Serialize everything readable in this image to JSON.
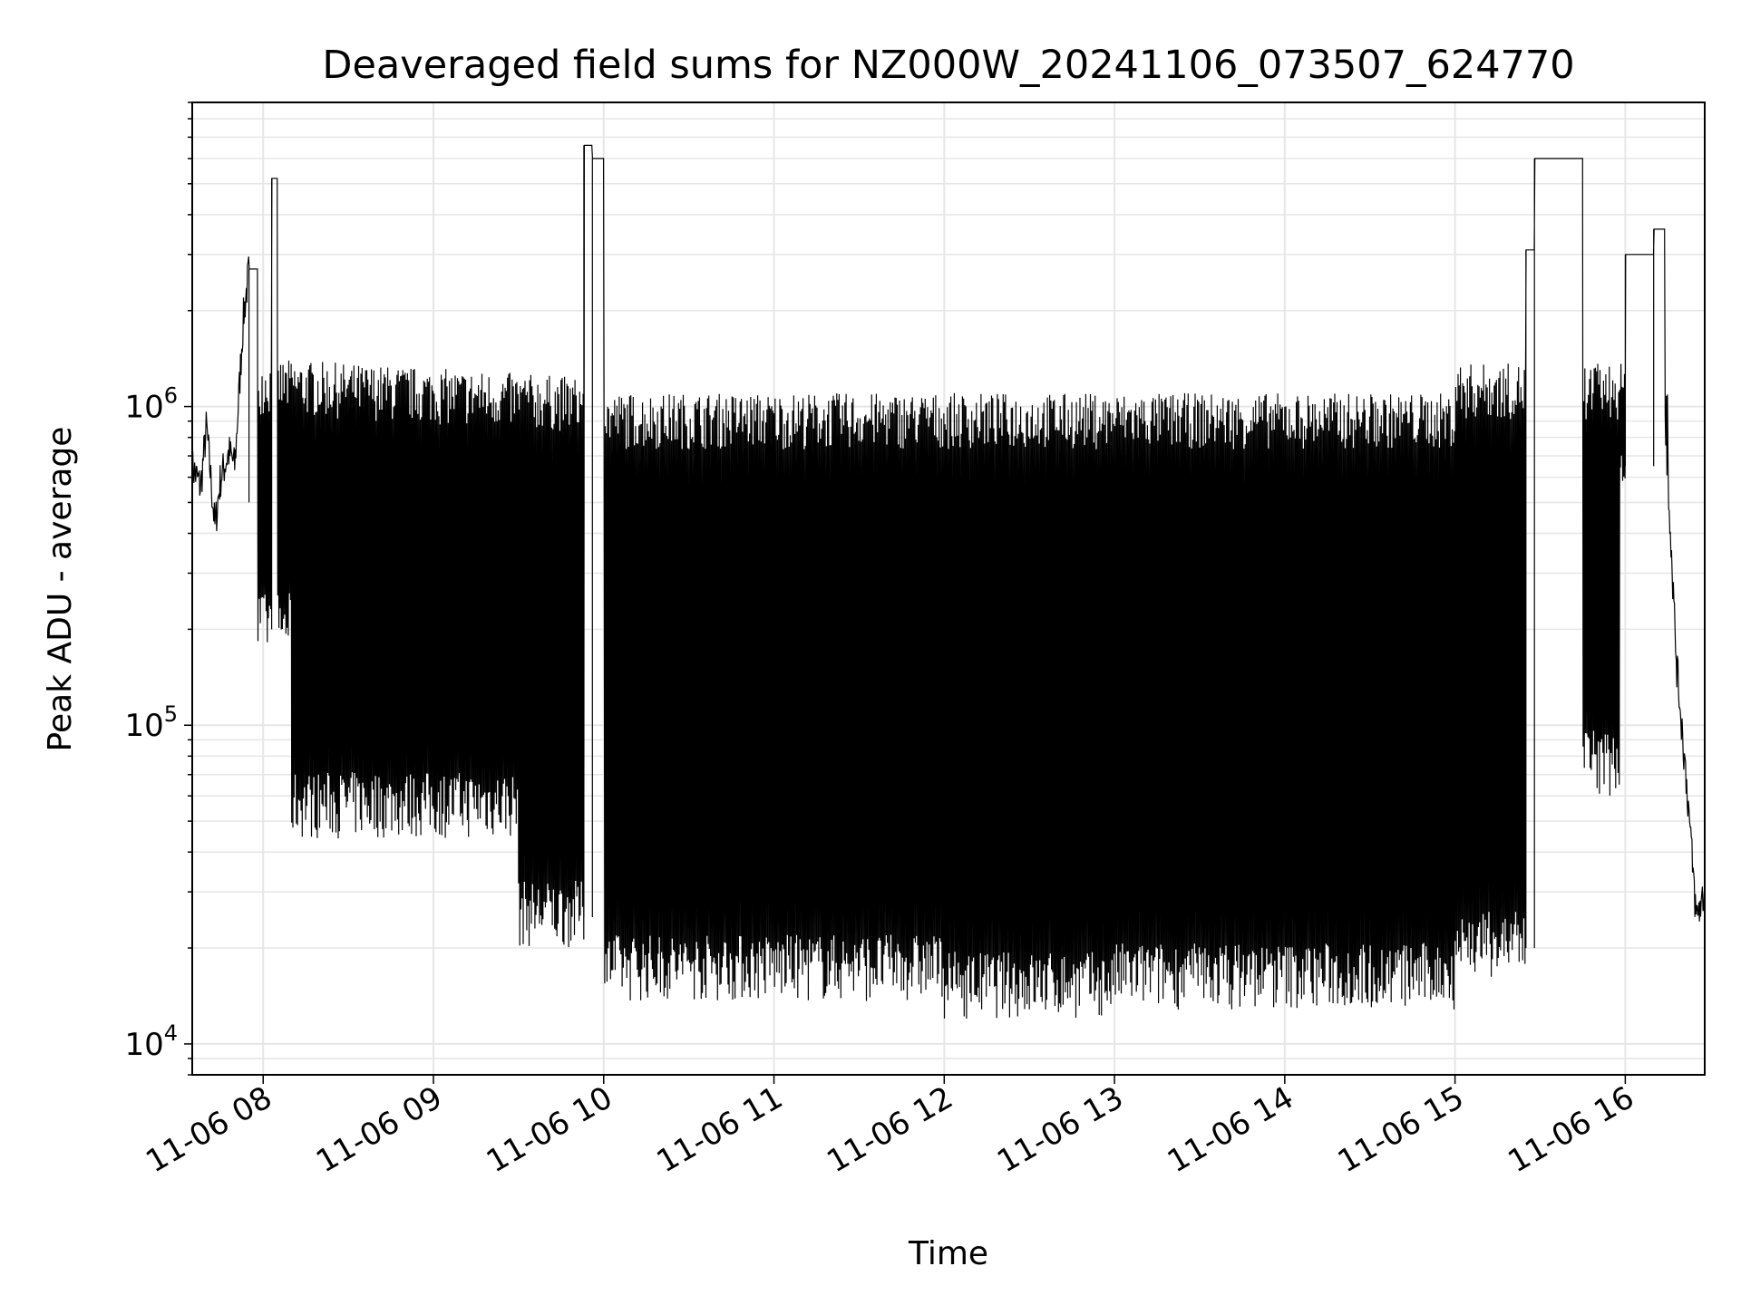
{
  "chart_data": {
    "type": "line",
    "title": "Deaveraged field sums for NZ000W_20241106_073507_624770",
    "xlabel": "Time",
    "ylabel": "Peak ADU - average",
    "yscale": "log",
    "ylim": [
      8000,
      9000000
    ],
    "xlim": [
      "2024-11-06 07:35",
      "2024-11-06 16:28"
    ],
    "grid": true,
    "line_color": "#000000",
    "x_ticks": [
      "11-06 08",
      "11-06 09",
      "11-06 10",
      "11-06 11",
      "11-06 12",
      "11-06 13",
      "11-06 14",
      "11-06 15",
      "11-06 16"
    ],
    "y_ticks": [
      {
        "value": 10000,
        "base": "10",
        "exp": "4"
      },
      {
        "value": 100000,
        "base": "10",
        "exp": "5"
      },
      {
        "value": 1000000,
        "base": "10",
        "exp": "6"
      }
    ],
    "series": [
      {
        "points": [
          [
            "2024-11-06 07:35",
            650000
          ],
          [
            "2024-11-06 07:38",
            560000
          ],
          [
            "2024-11-06 07:40",
            870000
          ],
          [
            "2024-11-06 07:43",
            420000
          ],
          [
            "2024-11-06 07:45",
            600000
          ],
          [
            "2024-11-06 07:48",
            720000
          ],
          [
            "2024-11-06 07:50",
            650000
          ],
          [
            "2024-11-06 07:53",
            1900000
          ],
          [
            "2024-11-06 07:55",
            2700000
          ],
          [
            "2024-11-06 07:58",
            1100000
          ],
          [
            "2024-11-06 08:00",
            280000
          ],
          [
            "2024-11-06 08:03",
            5200000
          ],
          [
            "2024-11-06 08:05",
            180000
          ],
          [
            "2024-11-06 08:08",
            63000
          ],
          [
            "2024-11-06 08:12",
            190000
          ],
          [
            "2024-11-06 08:18",
            95000
          ],
          [
            "2024-11-06 08:22",
            1500000
          ],
          [
            "2024-11-06 08:25",
            60000
          ],
          [
            "2024-11-06 08:35",
            1400000
          ],
          [
            "2024-11-06 08:40",
            45000
          ],
          [
            "2024-11-06 08:50",
            1450000
          ],
          [
            "2024-11-06 09:00",
            50000
          ],
          [
            "2024-11-06 09:10",
            1400000
          ],
          [
            "2024-11-06 09:20",
            40000
          ],
          [
            "2024-11-06 09:30",
            1300000
          ],
          [
            "2024-11-06 09:40",
            25000
          ],
          [
            "2024-11-06 09:50",
            1200000
          ],
          [
            "2024-11-06 09:53",
            6600000
          ],
          [
            "2024-11-06 09:56",
            6000000
          ],
          [
            "2024-11-06 10:00",
            16000
          ],
          [
            "2024-11-06 10:30",
            1100000
          ],
          [
            "2024-11-06 11:00",
            14000
          ],
          [
            "2024-11-06 11:30",
            1050000
          ],
          [
            "2024-11-06 12:00",
            13000
          ],
          [
            "2024-11-06 12:30",
            1100000
          ],
          [
            "2024-11-06 12:55",
            12000
          ],
          [
            "2024-11-06 13:30",
            1100000
          ],
          [
            "2024-11-06 14:00",
            11500
          ],
          [
            "2024-11-06 14:30",
            1100000
          ],
          [
            "2024-11-06 15:00",
            13000
          ],
          [
            "2024-11-06 15:25",
            3100000
          ],
          [
            "2024-11-06 15:28",
            6000000
          ],
          [
            "2024-11-06 15:45",
            1500000
          ],
          [
            "2024-11-06 15:50",
            80000
          ],
          [
            "2024-11-06 16:00",
            3000000
          ],
          [
            "2024-11-06 16:10",
            3600000
          ],
          [
            "2024-11-06 16:14",
            1000000
          ],
          [
            "2024-11-06 16:18",
            160000
          ],
          [
            "2024-11-06 16:22",
            60000
          ],
          [
            "2024-11-06 16:25",
            25000
          ],
          [
            "2024-11-06 16:28",
            30000
          ]
        ]
      }
    ]
  }
}
